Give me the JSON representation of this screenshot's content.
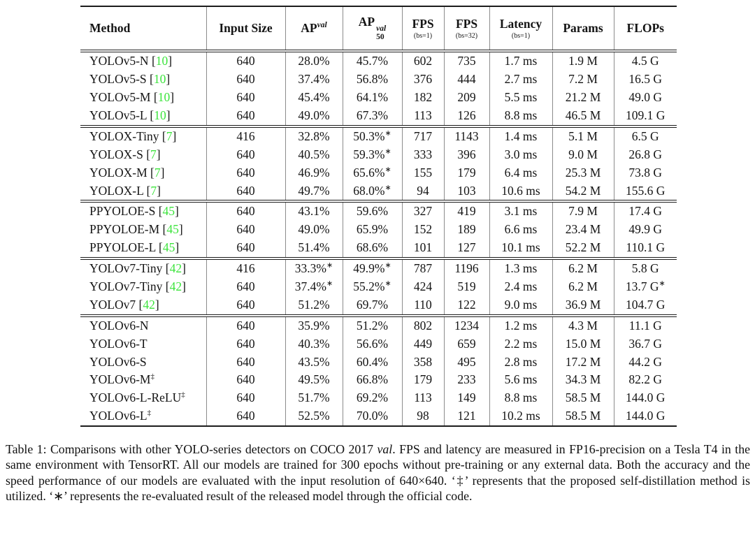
{
  "accent_green": "#3de43d",
  "table": {
    "columns": [
      {
        "label": "Method",
        "align": "left"
      },
      {
        "label": "Input Size"
      },
      {
        "label": "AP",
        "sup": "val"
      },
      {
        "label": "AP",
        "sup": "val",
        "sub": "50"
      },
      {
        "label": "FPS",
        "note": "(bs=1)"
      },
      {
        "label": "FPS",
        "note": "(bs=32)"
      },
      {
        "label": "Latency",
        "note": "(bs=1)"
      },
      {
        "label": "Params"
      },
      {
        "label": "FLOPs"
      }
    ],
    "groups": [
      {
        "rows": [
          {
            "method": "YOLOv5-N",
            "ref": "10",
            "cells": [
              "640",
              "28.0%",
              "45.7%",
              "602",
              "735",
              "1.7 ms",
              "1.9 M",
              "4.5 G"
            ]
          },
          {
            "method": "YOLOv5-S",
            "ref": "10",
            "cells": [
              "640",
              "37.4%",
              "56.8%",
              "376",
              "444",
              "2.7 ms",
              "7.2 M",
              "16.5 G"
            ]
          },
          {
            "method": "YOLOv5-M",
            "ref": "10",
            "cells": [
              "640",
              "45.4%",
              "64.1%",
              "182",
              "209",
              "5.5 ms",
              "21.2 M",
              "49.0 G"
            ]
          },
          {
            "method": "YOLOv5-L",
            "ref": "10",
            "cells": [
              "640",
              "49.0%",
              "67.3%",
              "113",
              "126",
              "8.8 ms",
              "46.5 M",
              "109.1 G"
            ]
          }
        ]
      },
      {
        "rows": [
          {
            "method": "YOLOX-Tiny",
            "ref": "7",
            "cells": [
              "416",
              "32.8%",
              "50.3%*",
              "717",
              "1143",
              "1.4 ms",
              "5.1 M",
              "6.5 G"
            ]
          },
          {
            "method": "YOLOX-S",
            "ref": "7",
            "cells": [
              "640",
              "40.5%",
              "59.3%*",
              "333",
              "396",
              "3.0 ms",
              "9.0 M",
              "26.8 G"
            ]
          },
          {
            "method": "YOLOX-M",
            "ref": "7",
            "cells": [
              "640",
              "46.9%",
              "65.6%*",
              "155",
              "179",
              "6.4 ms",
              "25.3 M",
              "73.8 G"
            ]
          },
          {
            "method": "YOLOX-L",
            "ref": "7",
            "cells": [
              "640",
              "49.7%",
              "68.0%*",
              "94",
              "103",
              "10.6 ms",
              "54.2 M",
              "155.6 G"
            ]
          }
        ]
      },
      {
        "rows": [
          {
            "method": "PPYOLOE-S",
            "ref": "45",
            "cells": [
              "640",
              "43.1%",
              "59.6%",
              "327",
              "419",
              "3.1 ms",
              "7.9 M",
              "17.4 G"
            ]
          },
          {
            "method": "PPYOLOE-M",
            "ref": "45",
            "cells": [
              "640",
              "49.0%",
              "65.9%",
              "152",
              "189",
              "6.6 ms",
              "23.4 M",
              "49.9 G"
            ]
          },
          {
            "method": "PPYOLOE-L",
            "ref": "45",
            "cells": [
              "640",
              "51.4%",
              "68.6%",
              "101",
              "127",
              "10.1 ms",
              "52.2 M",
              "110.1 G"
            ]
          }
        ]
      },
      {
        "rows": [
          {
            "method": "YOLOv7-Tiny",
            "ref": "42",
            "cells": [
              "416",
              "33.3%*",
              "49.9%*",
              "787",
              "1196",
              "1.3 ms",
              "6.2 M",
              "5.8 G"
            ]
          },
          {
            "method": "YOLOv7-Tiny",
            "ref": "42",
            "cells": [
              "640",
              "37.4%*",
              "55.2%*",
              "424",
              "519",
              "2.4 ms",
              "6.2 M",
              "13.7 G*"
            ]
          },
          {
            "method": "YOLOv7",
            "ref": "42",
            "cells": [
              "640",
              "51.2%",
              "69.7%",
              "110",
              "122",
              "9.0 ms",
              "36.9 M",
              "104.7 G"
            ]
          }
        ]
      },
      {
        "rows": [
          {
            "method": "YOLOv6-N",
            "cells": [
              "640",
              "35.9%",
              "51.2%",
              "802",
              "1234",
              "1.2 ms",
              "4.3 M",
              "11.1 G"
            ]
          },
          {
            "method": "YOLOv6-T",
            "cells": [
              "640",
              "40.3%",
              "56.6%",
              "449",
              "659",
              "2.2 ms",
              "15.0 M",
              "36.7 G"
            ]
          },
          {
            "method": "YOLOv6-S",
            "cells": [
              "640",
              "43.5%",
              "60.4%",
              "358",
              "495",
              "2.8 ms",
              "17.2 M",
              "44.2 G"
            ]
          },
          {
            "method": "YOLOv6-M",
            "marker": "‡",
            "cells": [
              "640",
              "49.5%",
              "66.8%",
              "179",
              "233",
              "5.6 ms",
              "34.3 M",
              "82.2 G"
            ]
          },
          {
            "method": "YOLOv6-L-ReLU",
            "marker": "‡",
            "cells": [
              "640",
              "51.7%",
              "69.2%",
              "113",
              "149",
              "8.8 ms",
              "58.5 M",
              "144.0 G"
            ]
          },
          {
            "method": "YOLOv6-L",
            "marker": "‡",
            "cells": [
              "640",
              "52.5%",
              "70.0%",
              "98",
              "121",
              "10.2 ms",
              "58.5 M",
              "144.0 G"
            ]
          }
        ]
      }
    ]
  },
  "caption": {
    "parts": [
      {
        "t": "Table 1: Comparisons with other YOLO-series detectors on COCO 2017 "
      },
      {
        "t": "val",
        "i": true
      },
      {
        "t": ". FPS and latency are measured in FP16-precision on a Tesla T4 in the same environment with TensorRT. All our models are trained for 300 epochs without pre-training or any external data. Both the accuracy and the speed performance of our models are evaluated with the input resolution of 640×640. ‘‡’ represents that the proposed self-distillation method is utilized. ‘∗’ represents the re-evaluated result of the released model through the official code."
      }
    ]
  }
}
